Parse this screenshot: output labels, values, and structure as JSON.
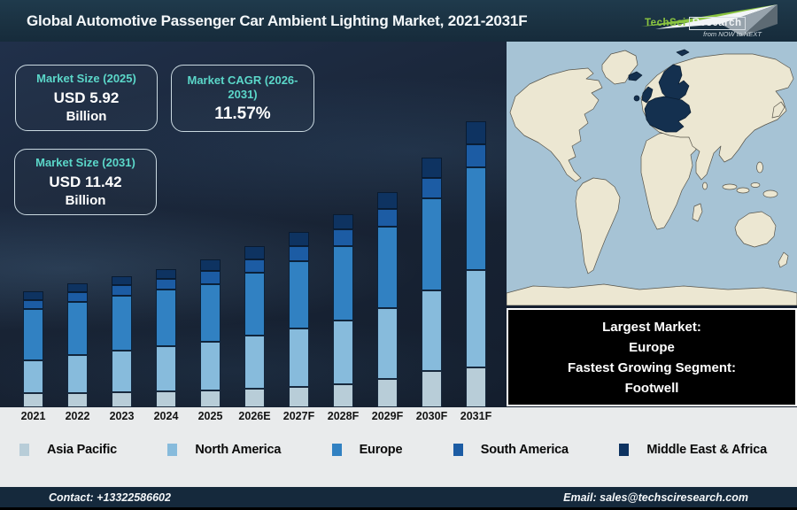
{
  "header": {
    "title": "Global Automotive Passenger Car Ambient Lighting Market, 2021-2031F",
    "logo": {
      "brand_primary": "TechSci",
      "brand_secondary": "Research",
      "tagline": "from NOW to NEXT"
    }
  },
  "stat_boxes": [
    {
      "label": "Market Size (2025)",
      "value": "USD 5.92",
      "unit": "Billion"
    },
    {
      "label": "Market CAGR (2026-2031)",
      "value": "11.57%",
      "unit": ""
    },
    {
      "label": "Market Size (2031)",
      "value": "USD 11.42",
      "unit": "Billion"
    }
  ],
  "map_note": {
    "lines": [
      "Largest Market:",
      "Europe",
      "Fastest Growing Segment:",
      "Footwell"
    ]
  },
  "chart_data": {
    "type": "bar",
    "stacked": true,
    "title": "Global Automotive Passenger Car Ambient Lighting Market, 2021-2031F",
    "value_unit": "USD Billion",
    "ylim": [
      0,
      12
    ],
    "grid": false,
    "legend_position": "bottom",
    "categories": [
      "2021",
      "2022",
      "2023",
      "2024",
      "2025",
      "2026E",
      "2027F",
      "2028F",
      "2029F",
      "2030F",
      "2031F"
    ],
    "series": [
      {
        "name": "Asia Pacific",
        "color": "#b8cdd8",
        "values": [
          0.55,
          0.58,
          0.62,
          0.65,
          0.68,
          0.75,
          0.82,
          0.92,
          1.15,
          1.45,
          1.59
        ]
      },
      {
        "name": "North America",
        "color": "#87bbdc",
        "values": [
          1.34,
          1.5,
          1.65,
          1.79,
          1.95,
          2.1,
          2.32,
          2.55,
          2.8,
          3.2,
          3.89
        ]
      },
      {
        "name": "Europe",
        "color": "#3181c2",
        "values": [
          2.05,
          2.12,
          2.2,
          2.27,
          2.29,
          2.52,
          2.7,
          2.98,
          3.28,
          3.7,
          4.1
        ]
      },
      {
        "name": "South America",
        "color": "#1c5ca4",
        "values": [
          0.35,
          0.38,
          0.4,
          0.42,
          0.51,
          0.55,
          0.6,
          0.65,
          0.7,
          0.81,
          0.92
        ]
      },
      {
        "name": "Middle East & Africa",
        "color": "#0e3361",
        "values": [
          0.33,
          0.35,
          0.37,
          0.38,
          0.49,
          0.53,
          0.56,
          0.6,
          0.67,
          0.79,
          0.92
        ]
      }
    ],
    "totals_note": {
      "2025": 5.92,
      "2031F": 11.42
    }
  },
  "footer": {
    "contact": "Contact: +13322586602",
    "email": "Email: sales@techsciresearch.com"
  },
  "colors": {
    "accent_teal": "#5bd7c9",
    "header_bg": "#1a3141",
    "chart_bg": "#182334",
    "footer_bg": "#15293c",
    "strip_bg": "#e9ebec",
    "highlight_box_bg": "#000000",
    "logo_green": "#8bc540",
    "map_ocean": "#a6c3d5",
    "map_land": "#ece7d2",
    "map_europe_highlight": "#14304f"
  }
}
